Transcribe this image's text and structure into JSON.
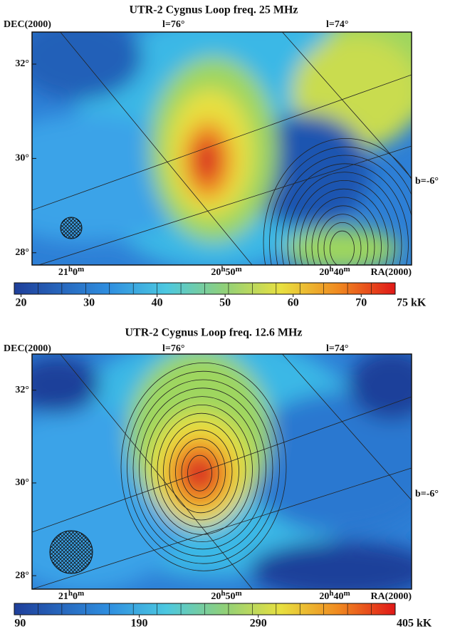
{
  "panels": [
    {
      "title": "UTR-2    Cygnus Loop    freq. 25 MHz",
      "y_label": "DEC(2000)",
      "x_label": "RA(2000)",
      "grid_labels": [
        "l=76°",
        "l=74°",
        "b=-6°"
      ],
      "dec_lim": [
        27.74,
        32.68
      ],
      "dec_ticks": [
        {
          "value": 32,
          "label": "32°"
        },
        {
          "value": 30,
          "label": "30°"
        },
        {
          "value": 28,
          "label": "28°"
        }
      ],
      "ra_ticks": [
        "21h0m",
        "20h50m",
        "20h40m"
      ],
      "clim": [
        19,
        75
      ],
      "cticks": [
        20,
        30,
        40,
        50,
        60,
        70
      ],
      "cend_label": "75 kK"
    },
    {
      "title": "UTR-2    Cygnus Loop    freq. 12.6 MHz",
      "y_label": "DEC(2000)",
      "x_label": "RA(2000)",
      "grid_labels": [
        "l=76°",
        "l=74°",
        "b=-6°"
      ],
      "dec_lim": [
        27.71,
        32.78
      ],
      "dec_ticks": [
        {
          "value": 32,
          "label": "32°"
        },
        {
          "value": 30,
          "label": "30°"
        },
        {
          "value": 28,
          "label": "28°"
        }
      ],
      "ra_ticks": [
        "21h0m",
        "20h50m",
        "20h40m"
      ],
      "clim": [
        85,
        405
      ],
      "cticks": [
        90,
        190,
        290
      ],
      "cend_label": "405 kK"
    }
  ]
}
